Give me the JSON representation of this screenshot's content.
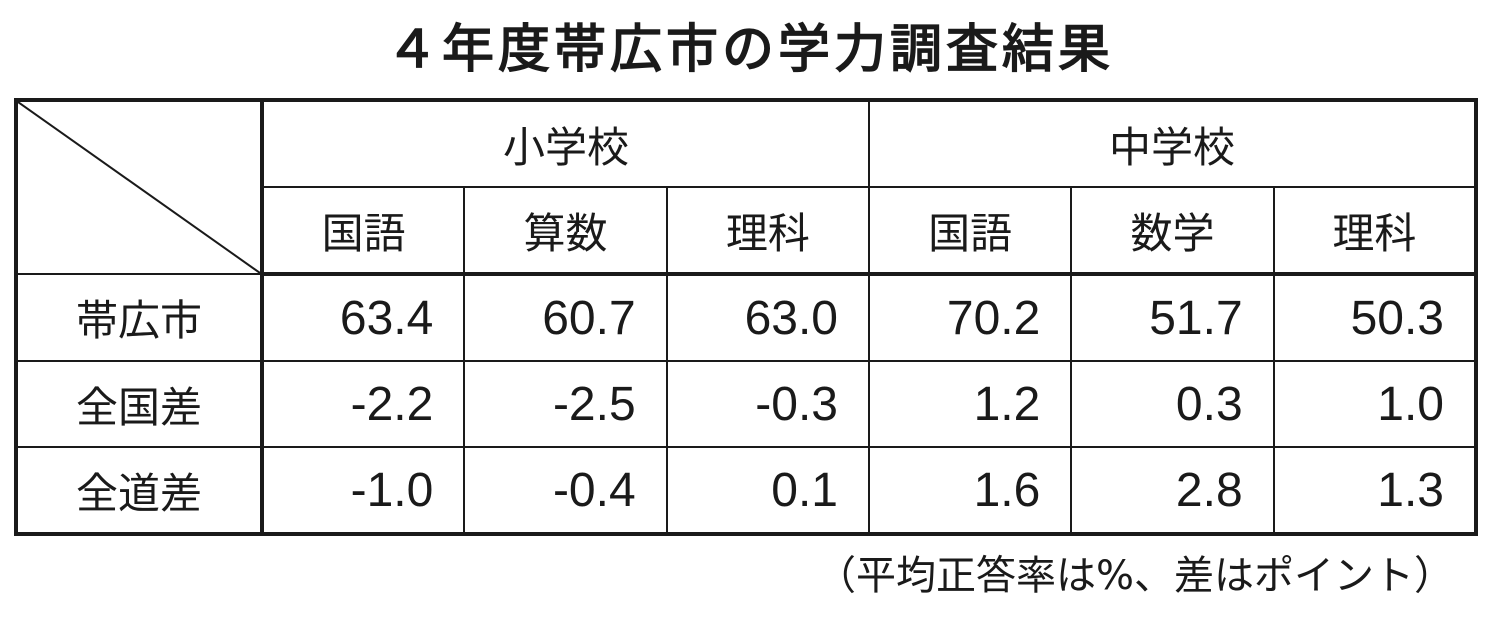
{
  "title": "４年度帯広市の学力調査結果",
  "table": {
    "groups": [
      "小学校",
      "中学校"
    ],
    "subjects": [
      "国語",
      "算数",
      "理科",
      "国語",
      "数学",
      "理科"
    ],
    "rows": [
      {
        "label": "帯広市",
        "cells": [
          "63.4",
          "60.7",
          "63.0",
          "70.2",
          "51.7",
          "50.3"
        ]
      },
      {
        "label": "全国差",
        "cells": [
          "-2.2",
          "-2.5",
          "-0.3",
          "1.2",
          "0.3",
          "1.0"
        ]
      },
      {
        "label": "全道差",
        "cells": [
          "-1.0",
          "-0.4",
          "0.1",
          "1.6",
          "2.8",
          "1.3"
        ]
      }
    ]
  },
  "note": "（平均正答率は%、差はポイント）"
}
